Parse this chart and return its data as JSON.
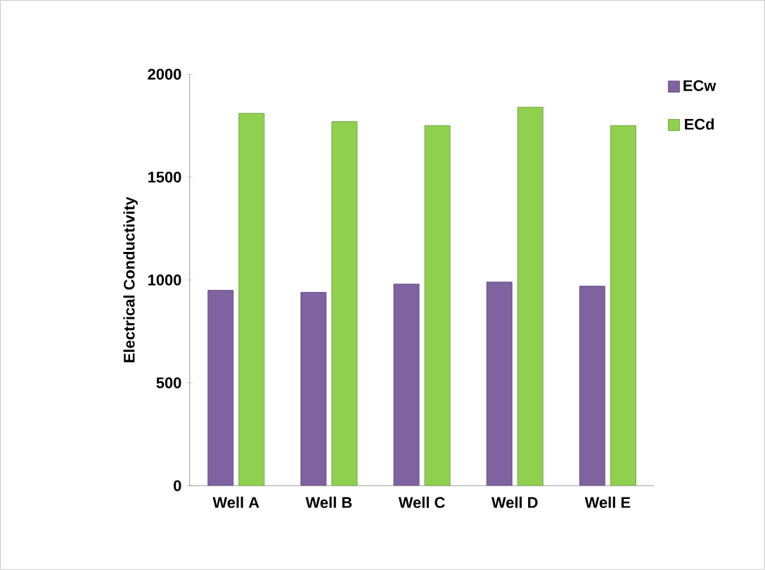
{
  "chart_data": {
    "type": "bar",
    "ylabel": "Electrical Conductivity",
    "categories": [
      "Well A",
      "Well B",
      "Well C",
      "Well D",
      "Well E"
    ],
    "series": [
      {
        "name": "ECw",
        "color": "#7f62a0",
        "values": [
          950,
          940,
          980,
          990,
          970
        ]
      },
      {
        "name": "ECd",
        "color": "#8fd14f",
        "values": [
          1810,
          1770,
          1750,
          1840,
          1750
        ]
      }
    ],
    "ylim": [
      0,
      2000
    ],
    "yticks": [
      0,
      500,
      1000,
      1500,
      2000
    ],
    "legend": "top right"
  }
}
